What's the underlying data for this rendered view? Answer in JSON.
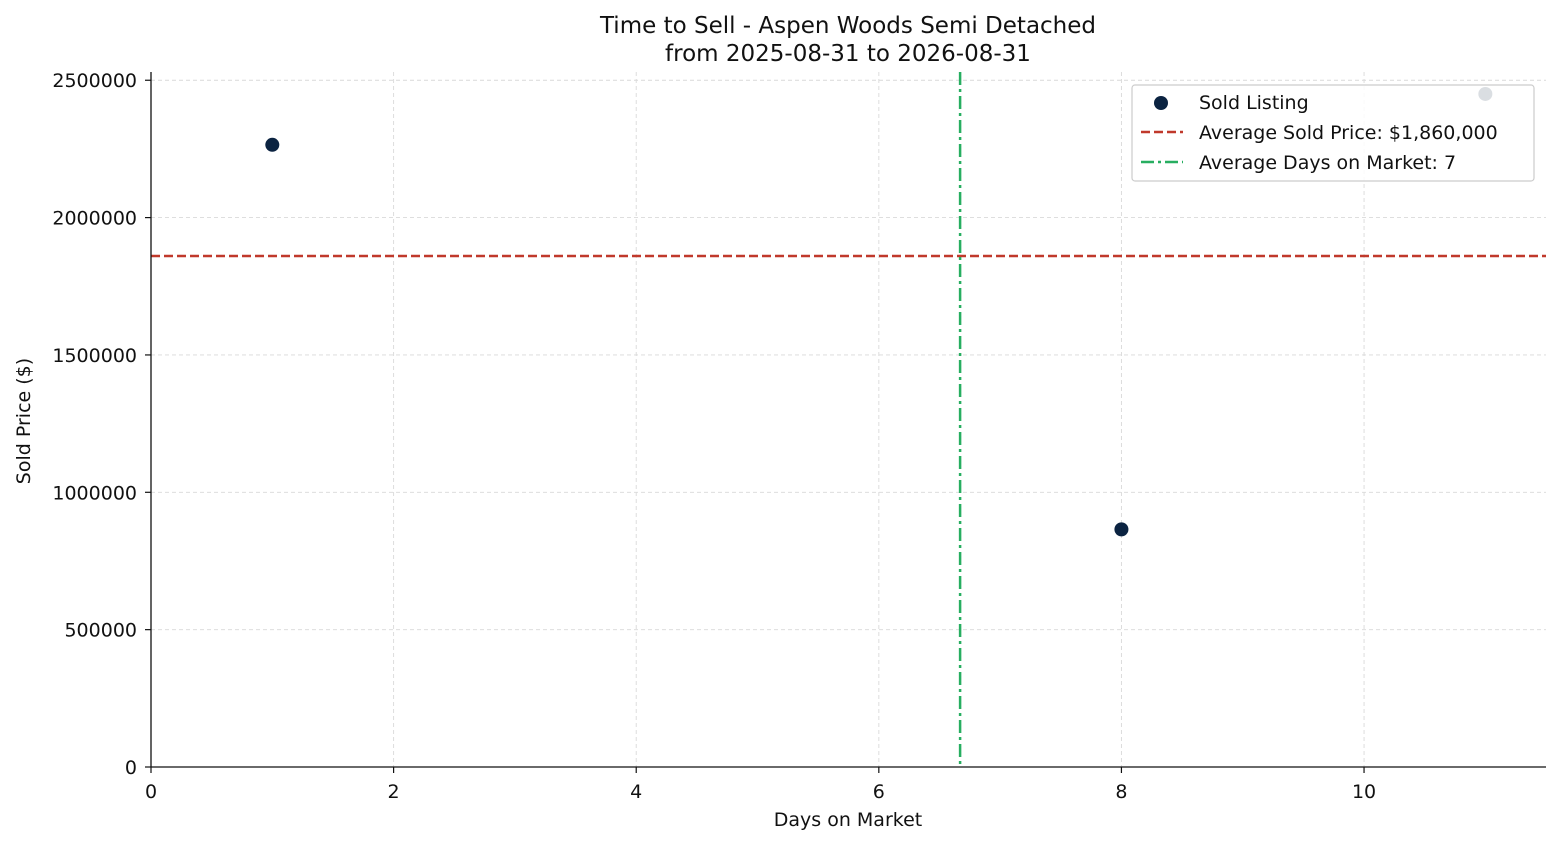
{
  "chart_data": {
    "type": "scatter",
    "title": "Time to Sell - Aspen Woods Semi Detached",
    "subtitle": "from 2025-08-31 to 2026-08-31",
    "xlabel": "Days on Market",
    "ylabel": "Sold Price ($)",
    "xlim": [
      0,
      11.5
    ],
    "ylim": [
      0,
      2530000
    ],
    "x_ticks": [
      0,
      2,
      4,
      6,
      8,
      10
    ],
    "y_ticks": [
      0,
      500000,
      1000000,
      1500000,
      2000000,
      2500000
    ],
    "grid": true,
    "legend_position": "top-right",
    "series": [
      {
        "name": "Sold Listing",
        "color": "#0b2341",
        "points": [
          {
            "x": 1,
            "y": 2265000
          },
          {
            "x": 8,
            "y": 865000
          },
          {
            "x": 11,
            "y": 2450000
          }
        ]
      }
    ],
    "reference_lines": [
      {
        "orientation": "horizontal",
        "value": 1860000,
        "label": "Average Sold Price: $1,860,000",
        "color": "#c0392b",
        "style": "dashed"
      },
      {
        "orientation": "vertical",
        "value": 6.67,
        "label": "Average Days on Market: 7",
        "color": "#27ae60",
        "style": "dashdot"
      }
    ]
  }
}
